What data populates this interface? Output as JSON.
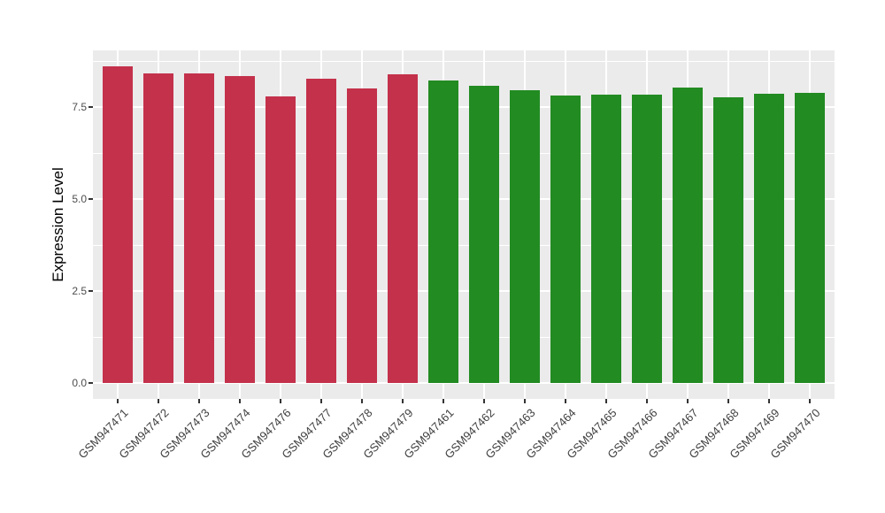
{
  "chart_data": {
    "type": "bar",
    "title": "",
    "xlabel": "",
    "ylabel": "Expression Level",
    "ylim": [
      0,
      9.05
    ],
    "yticks": [
      0.0,
      2.5,
      5.0,
      7.5
    ],
    "ytick_labels": [
      "0.0",
      "2.5",
      "5.0",
      "7.5"
    ],
    "grid": "on",
    "legend_position": "none",
    "panel_background_color": "#EBEBEB",
    "gridline_color": "#FFFFFF",
    "group_colors": {
      "groupA": "#C4314B",
      "groupB": "#228B22"
    },
    "bars": [
      {
        "label": "GSM947471",
        "value": 8.61,
        "group": "groupA"
      },
      {
        "label": "GSM947472",
        "value": 8.42,
        "group": "groupA"
      },
      {
        "label": "GSM947473",
        "value": 8.41,
        "group": "groupA"
      },
      {
        "label": "GSM947474",
        "value": 8.33,
        "group": "groupA"
      },
      {
        "label": "GSM947476",
        "value": 7.8,
        "group": "groupA"
      },
      {
        "label": "GSM947477",
        "value": 8.27,
        "group": "groupA"
      },
      {
        "label": "GSM947478",
        "value": 8.01,
        "group": "groupA"
      },
      {
        "label": "GSM947479",
        "value": 8.38,
        "group": "groupA"
      },
      {
        "label": "GSM947461",
        "value": 8.22,
        "group": "groupB"
      },
      {
        "label": "GSM947462",
        "value": 8.08,
        "group": "groupB"
      },
      {
        "label": "GSM947463",
        "value": 7.96,
        "group": "groupB"
      },
      {
        "label": "GSM947464",
        "value": 7.81,
        "group": "groupB"
      },
      {
        "label": "GSM947465",
        "value": 7.84,
        "group": "groupB"
      },
      {
        "label": "GSM947466",
        "value": 7.84,
        "group": "groupB"
      },
      {
        "label": "GSM947467",
        "value": 8.03,
        "group": "groupB"
      },
      {
        "label": "GSM947468",
        "value": 7.76,
        "group": "groupB"
      },
      {
        "label": "GSM947469",
        "value": 7.85,
        "group": "groupB"
      },
      {
        "label": "GSM947470",
        "value": 7.88,
        "group": "groupB"
      }
    ]
  }
}
